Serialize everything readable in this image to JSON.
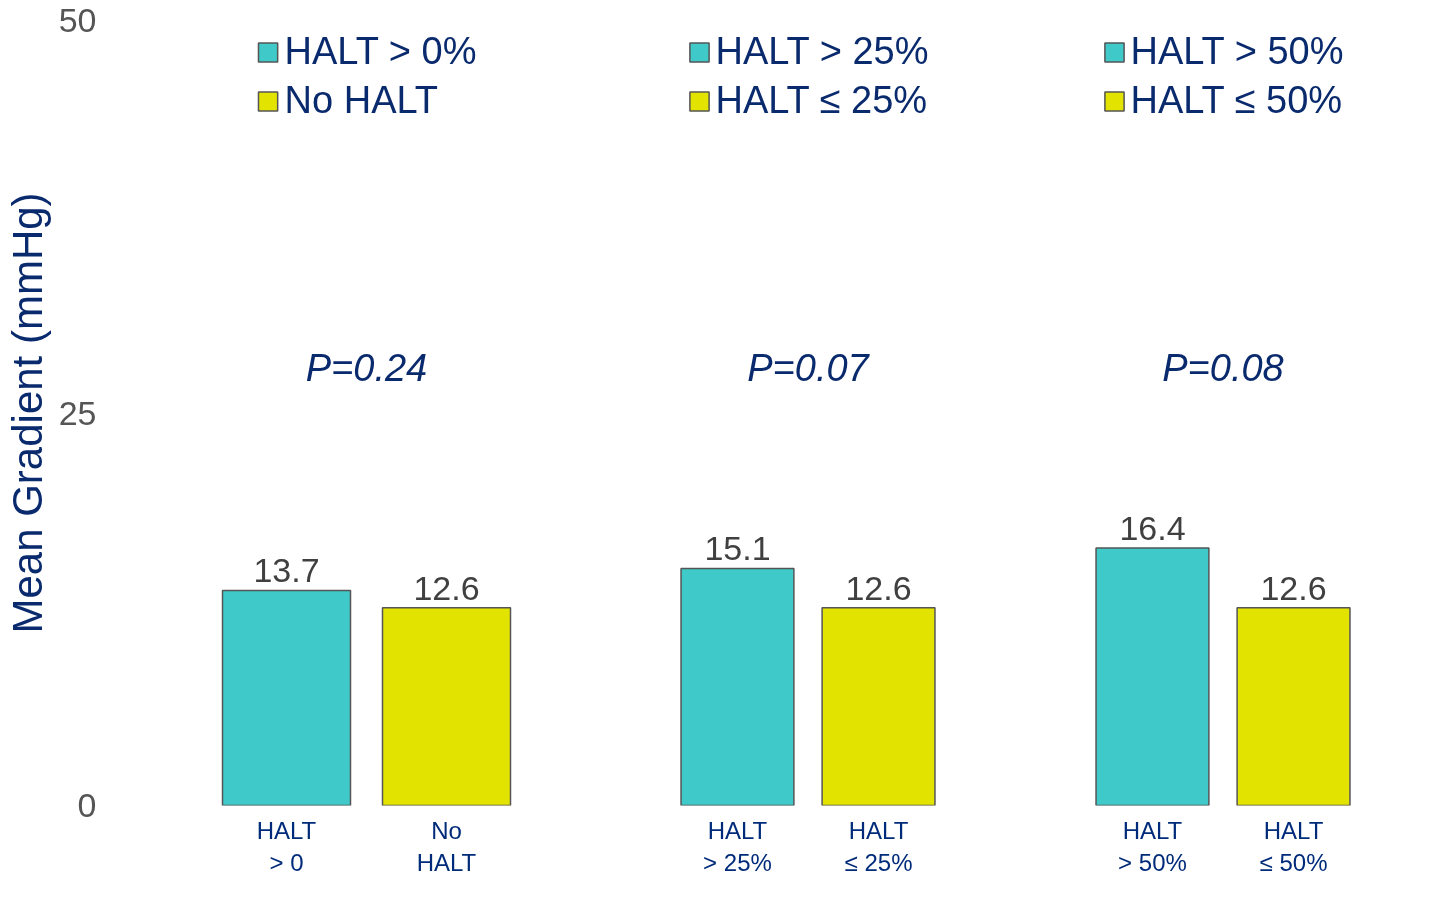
{
  "chart_data": [
    {
      "type": "bar",
      "ylabel": "Mean Gradient (mmHg)",
      "categories": [
        "HALT\n> 0",
        "No\nHALT"
      ],
      "series": [
        {
          "name": "HALT > 0%",
          "color": "#3fc9c9",
          "values": [
            13.7,
            null
          ]
        },
        {
          "name": "No HALT",
          "color": "#e3e300",
          "values": [
            null,
            12.6
          ]
        }
      ],
      "ylim": [
        0,
        50
      ],
      "yticks": [
        0,
        25,
        50
      ],
      "data_labels": true,
      "legend": "top",
      "grid": false,
      "annotations": [
        "P=0.24"
      ]
    },
    {
      "type": "bar",
      "categories": [
        "HALT\n> 25%",
        "HALT\n≤ 25%"
      ],
      "series": [
        {
          "name": "HALT > 25%",
          "color": "#3fc9c9",
          "values": [
            15.1,
            null
          ]
        },
        {
          "name": "HALT ≤ 25%",
          "color": "#e3e300",
          "values": [
            null,
            12.6
          ]
        }
      ],
      "ylim": [
        0,
        50
      ],
      "tick_labels": "x",
      "data_labels": true,
      "legend": "top",
      "grid": false,
      "annotations": [
        "P=0.07"
      ]
    },
    {
      "type": "bar",
      "categories": [
        "HALT\n> 50%",
        "HALT\n≤ 50%"
      ],
      "series": [
        {
          "name": "HALT > 50%",
          "color": "#3fc9c9",
          "values": [
            16.4,
            null
          ]
        },
        {
          "name": "HALT ≤ 50%",
          "color": "#e3e300",
          "values": [
            null,
            12.6
          ]
        }
      ],
      "ylim": [
        0,
        50
      ],
      "tick_labels": "x",
      "data_labels": true,
      "legend": "top",
      "grid": false,
      "annotations": [
        "P=0.08"
      ]
    }
  ]
}
